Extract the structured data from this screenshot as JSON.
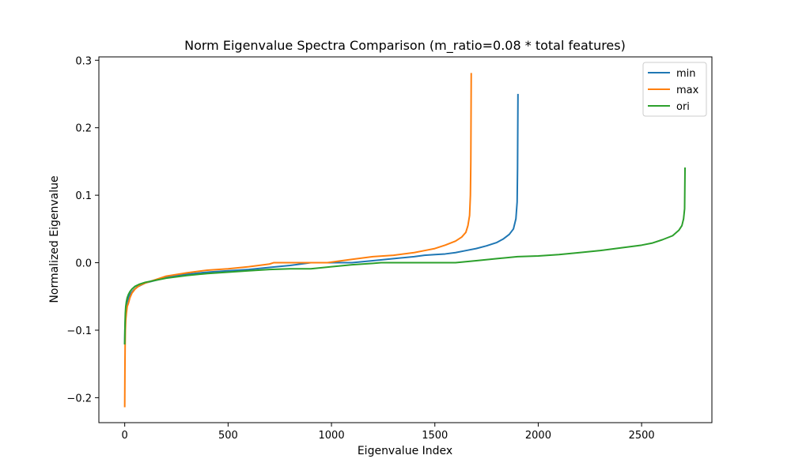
{
  "chart_data": {
    "type": "line",
    "title": "Norm Eigenvalue Spectra Comparison (m_ratio=0.08 * total features)",
    "xlabel": "Eigenvalue Index",
    "ylabel": "Normalized Eigenvalue",
    "xlim": [
      -125,
      2840
    ],
    "ylim": [
      -0.237,
      0.305
    ],
    "xticks": [
      0,
      500,
      1000,
      1500,
      2000,
      2500
    ],
    "xtick_labels": [
      "0",
      "500",
      "1000",
      "1500",
      "2000",
      "2500"
    ],
    "yticks": [
      -0.2,
      -0.1,
      0.0,
      0.1,
      0.2,
      0.3
    ],
    "ytick_labels": [
      "−0.2",
      "−0.1",
      "0.0",
      "0.1",
      "0.2",
      "0.3"
    ],
    "grid": false,
    "legend_position": "top-right",
    "series": [
      {
        "name": "min",
        "color": "#1f77b4",
        "x": [
          0,
          1,
          2,
          4,
          7,
          10,
          15,
          20,
          30,
          45,
          60,
          80,
          100,
          150,
          200,
          300,
          400,
          500,
          600,
          700,
          800,
          900,
          1000,
          1100,
          1200,
          1300,
          1400,
          1450,
          1500,
          1550,
          1600,
          1650,
          1700,
          1750,
          1800,
          1830,
          1860,
          1880,
          1892,
          1898,
          1900,
          1902
        ],
        "y": [
          -0.12,
          -0.1,
          -0.09,
          -0.08,
          -0.07,
          -0.06,
          -0.055,
          -0.05,
          -0.045,
          -0.04,
          -0.036,
          -0.033,
          -0.03,
          -0.026,
          -0.022,
          -0.017,
          -0.014,
          -0.012,
          -0.01,
          -0.007,
          -0.004,
          0.0,
          0.0,
          0.0,
          0.003,
          0.006,
          0.009,
          0.011,
          0.012,
          0.013,
          0.015,
          0.018,
          0.021,
          0.025,
          0.03,
          0.035,
          0.042,
          0.05,
          0.065,
          0.09,
          0.14,
          0.249
        ]
      },
      {
        "name": "max",
        "color": "#ff7f0e",
        "x": [
          0,
          1,
          2,
          3,
          5,
          8,
          12,
          18,
          25,
          35,
          50,
          70,
          100,
          150,
          200,
          300,
          400,
          500,
          600,
          700,
          720,
          800,
          900,
          980,
          1100,
          1200,
          1250,
          1300,
          1400,
          1450,
          1500,
          1550,
          1600,
          1630,
          1650,
          1660,
          1668,
          1672,
          1674,
          1676
        ],
        "y": [
          -0.213,
          -0.16,
          -0.12,
          -0.1,
          -0.085,
          -0.075,
          -0.065,
          -0.06,
          -0.052,
          -0.045,
          -0.039,
          -0.034,
          -0.03,
          -0.025,
          -0.02,
          -0.015,
          -0.011,
          -0.009,
          -0.006,
          -0.002,
          0.0,
          0.0,
          0.0,
          0.0,
          0.005,
          0.009,
          0.01,
          0.011,
          0.015,
          0.018,
          0.021,
          0.026,
          0.032,
          0.038,
          0.045,
          0.055,
          0.07,
          0.1,
          0.15,
          0.28
        ]
      },
      {
        "name": "ori",
        "color": "#2ca02c",
        "x": [
          0,
          1,
          2,
          3,
          5,
          8,
          12,
          18,
          25,
          35,
          50,
          70,
          100,
          150,
          200,
          300,
          400,
          500,
          600,
          700,
          800,
          900,
          1000,
          1100,
          1200,
          1240,
          1300,
          1400,
          1500,
          1600,
          1700,
          1800,
          1900,
          2000,
          2100,
          2200,
          2300,
          2400,
          2500,
          2550,
          2600,
          2650,
          2680,
          2695,
          2703,
          2708,
          2710
        ],
        "y": [
          -0.12,
          -0.1,
          -0.085,
          -0.075,
          -0.065,
          -0.058,
          -0.052,
          -0.047,
          -0.043,
          -0.039,
          -0.035,
          -0.032,
          -0.029,
          -0.026,
          -0.023,
          -0.019,
          -0.016,
          -0.014,
          -0.012,
          -0.01,
          -0.009,
          -0.009,
          -0.006,
          -0.003,
          -0.001,
          0.0,
          0.0,
          0.0,
          0.0,
          0.0,
          0.003,
          0.006,
          0.009,
          0.01,
          0.012,
          0.015,
          0.018,
          0.022,
          0.026,
          0.029,
          0.034,
          0.04,
          0.048,
          0.055,
          0.065,
          0.08,
          0.14
        ]
      }
    ]
  }
}
